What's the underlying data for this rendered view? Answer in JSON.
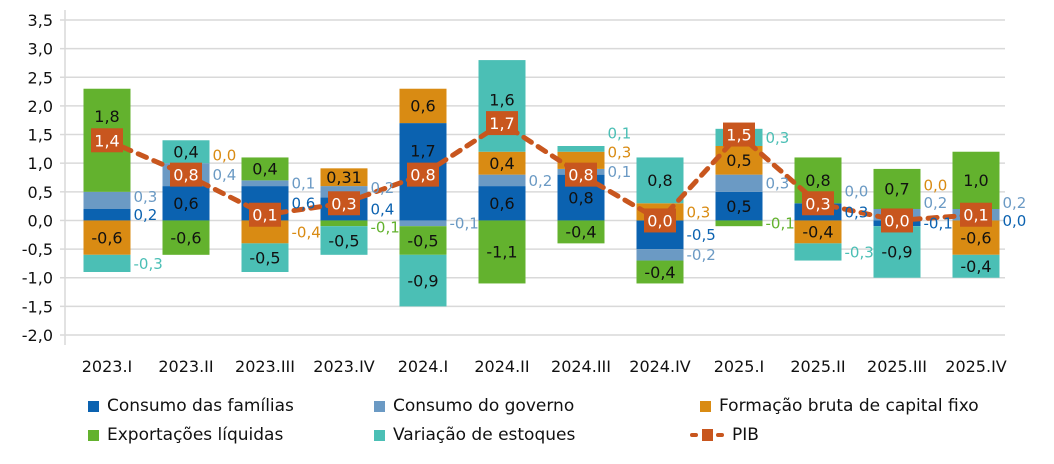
{
  "chart_data": {
    "type": "bar",
    "stacked": true,
    "categories": [
      "2023.I",
      "2023.II",
      "2023.III",
      "2023.IV",
      "2024.I",
      "2024.II",
      "2024.III",
      "2024.IV",
      "2025.I",
      "2025.II",
      "2025.III",
      "2025.IV"
    ],
    "ylim": [
      -2.0,
      3.5
    ],
    "yticks": [
      "-2,0",
      "-1,5",
      "-1,0",
      "-0,5",
      "0,0",
      "0,5",
      "1,0",
      "1,5",
      "2,0",
      "2,5",
      "3,0",
      "3,5"
    ],
    "grid": true,
    "legend_position": "bottom",
    "series": [
      {
        "name": "Consumo das famílias",
        "color": "#0b62b0",
        "values": [
          0.2,
          0.6,
          0.6,
          0.4,
          1.7,
          0.6,
          0.8,
          -0.5,
          0.5,
          0.3,
          -0.1,
          0.0
        ],
        "labels": [
          "0,2",
          "0,6",
          "0,6",
          "0,4",
          "1,7",
          "0,6",
          "0,8",
          "-0,5",
          "0,5",
          "0,3",
          "-0,1",
          "0,0"
        ]
      },
      {
        "name": "Consumo do governo",
        "color": "#6b9ac4",
        "values": [
          0.3,
          0.4,
          0.1,
          0.2,
          -0.1,
          0.2,
          0.1,
          -0.2,
          0.3,
          0.0,
          0.2,
          0.2
        ],
        "labels": [
          "0,3",
          "0,4",
          "0,1",
          "0,2",
          "-0,1",
          "0,2",
          "0,1",
          "-0,2",
          "0,3",
          "0,0",
          "0,2",
          "0,2"
        ]
      },
      {
        "name": "Formação bruta de capital fixo",
        "color": "#d98b13",
        "values": [
          -0.6,
          0.0,
          -0.4,
          0.31,
          0.6,
          0.4,
          0.3,
          0.3,
          0.5,
          -0.4,
          0.0,
          -0.6
        ],
        "labels": [
          "-0,6",
          "0,0",
          "-0,4",
          "0,31",
          "0,6",
          "0,4",
          "0,3",
          "0,3",
          "0,5",
          "-0,4",
          "0,0",
          "-0,6"
        ]
      },
      {
        "name": "Exportações líquidas",
        "color": "#63b22e",
        "values": [
          1.8,
          -0.6,
          0.4,
          -0.1,
          -0.5,
          -1.1,
          -0.4,
          -0.4,
          -0.1,
          0.8,
          0.7,
          1.0
        ],
        "labels": [
          "1,8",
          "-0,6",
          "0,4",
          "-0,1",
          "-0,5",
          "-1,1",
          "-0,4",
          "-0,4",
          "-0,1",
          "0,8",
          "0,7",
          "1,0"
        ]
      },
      {
        "name": "Variação de estoques",
        "color": "#4bbfb5",
        "values": [
          -0.3,
          0.4,
          -0.5,
          -0.5,
          -0.9,
          1.6,
          0.1,
          0.8,
          0.3,
          -0.3,
          -0.9,
          -0.4
        ],
        "labels": [
          "-0,3",
          "0,4",
          "-0,5",
          "-0,5",
          "-0,9",
          "1,6",
          "0,1",
          "0,8",
          "0,3",
          "-0,3",
          "-0,9",
          "-0,4"
        ]
      }
    ],
    "line": {
      "name": "PIB",
      "color": "#c8561e",
      "values": [
        1.4,
        0.8,
        0.1,
        0.3,
        0.8,
        1.7,
        0.8,
        0.0,
        1.5,
        0.3,
        0.0,
        0.1
      ],
      "labels": [
        "1,4",
        "0,8",
        "0,1",
        "0,3",
        "0,8",
        "1,7",
        "0,8",
        "0,0",
        "1,5",
        "0,3",
        "0,0",
        "0,1"
      ]
    }
  }
}
